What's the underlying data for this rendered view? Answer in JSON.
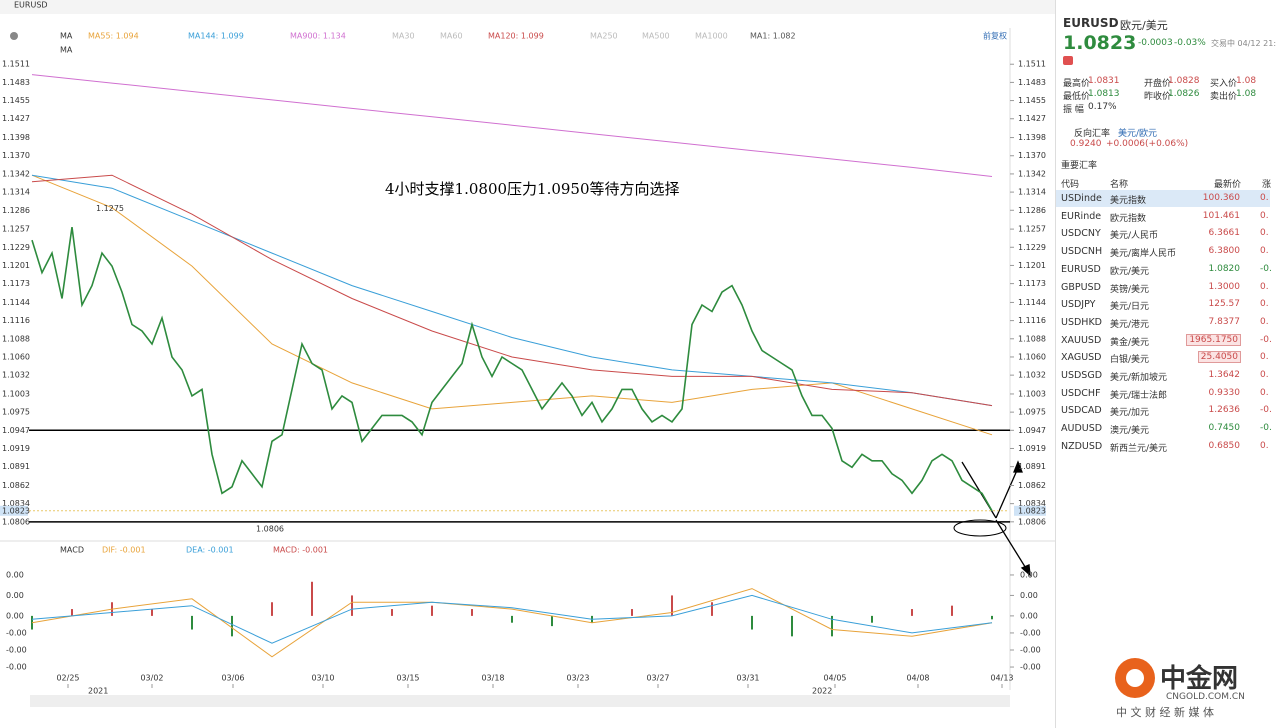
{
  "toolbar": {
    "symbol": "EURUSD",
    "adjust": "前复权",
    "indicator": "MA"
  },
  "chart_data": {
    "type": "line",
    "title": "4小时支撑1.0800压力1.0950等待方向选择",
    "xlim": [
      -0.3,
      97.5
    ],
    "ylim": [
      1.0778,
      1.1536
    ],
    "xticks": [
      {
        "value": 3.6,
        "label": "02/25"
      },
      {
        "value": 12,
        "label": "03/02"
      },
      {
        "value": 20.1,
        "label": "03/06"
      },
      {
        "value": 29.1,
        "label": "03/10"
      },
      {
        "value": 37.6,
        "label": "03/15"
      },
      {
        "value": 46.1,
        "label": "03/18"
      },
      {
        "value": 54.6,
        "label": "03/23"
      },
      {
        "value": 62.6,
        "label": "03/27"
      },
      {
        "value": 71.6,
        "label": "03/31"
      },
      {
        "value": 80.3,
        "label": "04/05"
      },
      {
        "value": 88.6,
        "label": "04/08"
      },
      {
        "value": 97,
        "label": "04/13"
      }
    ],
    "years": [
      {
        "value": 5.6,
        "label": "2021"
      },
      {
        "value": 78,
        "label": "2022"
      }
    ],
    "yticks": [
      1.1511,
      1.1483,
      1.1455,
      1.1427,
      1.1398,
      {
        "value": 1.137,
        "label": "1.1370"
      },
      1.1342,
      1.1314,
      1.1286,
      1.1257,
      1.1229,
      1.1201,
      1.1173,
      1.1144,
      1.1116,
      1.1088,
      {
        "value": 1.106,
        "label": "1.1060"
      },
      1.1032,
      1.1003,
      1.0975,
      1.0947,
      1.0919,
      1.0891,
      1.0862,
      1.0834,
      1.0806
    ],
    "price": {
      "color": "#2e8b3e",
      "x": [
        0,
        1,
        2,
        3,
        4,
        5,
        6,
        7,
        8,
        9,
        10,
        11,
        12,
        13,
        14,
        15,
        16,
        17,
        18,
        19,
        20,
        21,
        22,
        23,
        24,
        25,
        26,
        27,
        28,
        29,
        30,
        31,
        32,
        33,
        34,
        35,
        36,
        37,
        38,
        39,
        40,
        41,
        42,
        43,
        44,
        45,
        46,
        47,
        48,
        49,
        50,
        51,
        52,
        53,
        54,
        55,
        56,
        57,
        58,
        59,
        60,
        61,
        62,
        63,
        64,
        65,
        66,
        67,
        68,
        69,
        70,
        71,
        72,
        73,
        74,
        75,
        76,
        77,
        78,
        79,
        80,
        81,
        82,
        83,
        84,
        85,
        86,
        87,
        88,
        89,
        90,
        91,
        92,
        93,
        94,
        95,
        96
      ],
      "values": [
        1.124,
        1.119,
        1.122,
        1.115,
        1.126,
        1.114,
        1.117,
        1.122,
        1.12,
        1.116,
        1.111,
        1.11,
        1.108,
        1.112,
        1.106,
        1.104,
        1.1,
        1.101,
        1.091,
        1.085,
        1.086,
        1.09,
        1.088,
        1.086,
        1.093,
        1.094,
        1.101,
        1.108,
        1.105,
        1.104,
        1.098,
        1.1,
        1.099,
        1.093,
        1.095,
        1.097,
        1.097,
        1.097,
        1.096,
        1.094,
        1.099,
        1.101,
        1.103,
        1.105,
        1.111,
        1.106,
        1.103,
        1.106,
        1.105,
        1.104,
        1.101,
        1.098,
        1.1,
        1.102,
        1.1,
        1.097,
        1.099,
        1.096,
        1.098,
        1.101,
        1.101,
        1.098,
        1.096,
        1.097,
        1.096,
        1.098,
        1.111,
        1.114,
        1.113,
        1.116,
        1.117,
        1.114,
        1.11,
        1.107,
        1.106,
        1.105,
        1.104,
        1.1,
        1.097,
        1.097,
        1.095,
        1.09,
        1.089,
        1.091,
        1.09,
        1.09,
        1.088,
        1.087,
        1.085,
        1.087,
        1.09,
        1.091,
        1.09,
        1.087,
        1.086,
        1.085,
        1.0823
      ]
    },
    "series": [
      {
        "name": "MA55: 1.094",
        "color": "#e8a33a",
        "x": [
          0,
          8,
          16,
          24,
          32,
          40,
          48,
          56,
          64,
          72,
          80,
          88,
          96
        ],
        "values": [
          1.134,
          1.129,
          1.12,
          1.108,
          1.102,
          1.098,
          1.099,
          1.1,
          1.099,
          1.101,
          1.102,
          1.098,
          1.094
        ]
      },
      {
        "name": "MA144: 1.099",
        "color": "#3a9fd8",
        "x": [
          0,
          8,
          16,
          24,
          32,
          40,
          48,
          56,
          64,
          72,
          80,
          88,
          96
        ],
        "values": [
          1.134,
          1.132,
          1.127,
          1.122,
          1.117,
          1.113,
          1.109,
          1.106,
          1.104,
          1.103,
          1.102,
          1.1005,
          1.0985
        ]
      },
      {
        "name": "MA900: 1.134",
        "color": "#d070d0",
        "x": [
          0,
          8,
          16,
          24,
          32,
          40,
          48,
          56,
          64,
          72,
          80,
          88,
          96
        ],
        "values": [
          1.1495,
          1.1482,
          1.1469,
          1.1456,
          1.1443,
          1.143,
          1.1417,
          1.1404,
          1.1391,
          1.1378,
          1.1365,
          1.1352,
          1.1338
        ]
      },
      {
        "name": "MA120: 1.099",
        "color": "#c94a4a",
        "x": [
          0,
          8,
          16,
          24,
          32,
          40,
          48,
          56,
          64,
          72,
          80,
          88,
          96
        ],
        "values": [
          1.133,
          1.134,
          1.128,
          1.121,
          1.115,
          1.11,
          1.106,
          1.104,
          1.103,
          1.103,
          1.101,
          1.1005,
          1.0985
        ]
      }
    ],
    "legend_extra": [
      "MA30",
      "MA60",
      "MA250",
      "MA500",
      "MA1000",
      "MA1: 1.082"
    ],
    "hlines": [
      1.0947,
      1.0806
    ],
    "hline_color": "#000000",
    "annotations": [
      {
        "text": "1.1275",
        "x": 6.4,
        "y": 1.1275
      },
      {
        "text": "1.0806",
        "x": 22.4,
        "y": 1.0806
      }
    ],
    "last_price": {
      "value": 1.0823,
      "label": "1.0823"
    },
    "macd": {
      "title": "MACD",
      "label": "MACD: -0.001",
      "ylim": [
        -0.0094,
        0.0079
      ],
      "yticks": [
        {
          "value": 0.006,
          "label": "0.00"
        },
        {
          "value": 0.003,
          "label": "0.00"
        },
        {
          "value": 0,
          "label": "0.00"
        },
        {
          "value": -0.0025,
          "label": "-0.00"
        },
        {
          "value": -0.005,
          "label": "-0.00"
        },
        {
          "value": -0.0075,
          "label": "-0.00"
        }
      ],
      "dif": {
        "name": "DIF: -0.001",
        "color": "#e8a33a",
        "x": [
          0,
          8,
          16,
          24,
          32,
          40,
          48,
          56,
          64,
          72,
          80,
          88,
          96
        ],
        "values": [
          -0.001,
          0.001,
          0.0025,
          -0.006,
          0.002,
          0.002,
          0.001,
          -0.001,
          0.0005,
          0.004,
          -0.002,
          -0.003,
          -0.001
        ]
      },
      "dea": {
        "name": "DEA: -0.001",
        "color": "#3a9fd8",
        "x": [
          0,
          8,
          16,
          24,
          32,
          40,
          48,
          56,
          64,
          72,
          80,
          88,
          96
        ],
        "values": [
          -0.0005,
          0.0005,
          0.0015,
          -0.004,
          0.001,
          0.002,
          0.0012,
          -0.0005,
          0,
          0.003,
          -0.0005,
          -0.0025,
          -0.001
        ]
      },
      "hist": {
        "up_color": "#c94a4a",
        "down_color": "#2e8b3e",
        "x": [
          0,
          4,
          8,
          12,
          16,
          20,
          24,
          28,
          32,
          36,
          40,
          44,
          48,
          52,
          56,
          60,
          64,
          68,
          72,
          76,
          80,
          84,
          88,
          92,
          96
        ],
        "values": [
          -0.002,
          0.001,
          0.002,
          0.001,
          -0.002,
          -0.003,
          0.002,
          0.005,
          0.003,
          0.001,
          0.0015,
          0.001,
          -0.001,
          -0.0015,
          -0.001,
          0.001,
          0.003,
          0.002,
          -0.002,
          -0.003,
          -0.003,
          -0.001,
          0.001,
          0.0015,
          -0.0005
        ]
      }
    }
  },
  "panel": {
    "symbol": "EURUSD",
    "name": "欧元/美元",
    "price": "1.0823",
    "change": "-0.0003",
    "percent": "-0.03%",
    "status": "交易中 04/12 21:",
    "stats": [
      [
        "最高价",
        "1.0831",
        "开盘价",
        "1.0828",
        "买入价",
        "1.08"
      ],
      [
        "最低价",
        "1.0813",
        "昨收价",
        "1.0826",
        "卖出价",
        "1.08"
      ]
    ],
    "amplitude_label": "振 幅",
    "amplitude": "0.17%",
    "reverse": {
      "label": "反向汇率",
      "pair": "美元/欧元",
      "price": "0.9240",
      "change": "+0.0006(+0.06%)"
    },
    "table_title": "重要汇率",
    "columns": [
      "代码",
      "名称",
      "最新价",
      "涨"
    ],
    "rows": [
      [
        "USDinde",
        "美元指数",
        "100.360",
        "0.",
        "#c94a4a"
      ],
      [
        "EURinde",
        "欧元指数",
        "101.461",
        "0.",
        "#c94a4a"
      ],
      [
        "USDCNY",
        "美元/人民币",
        "6.3661",
        "0.",
        "#c94a4a"
      ],
      [
        "USDCNH",
        "美元/离岸人民币",
        "6.3800",
        "0.",
        "#c94a4a"
      ],
      [
        "EURUSD",
        "欧元/美元",
        "1.0820",
        "-0.",
        "#2e8b3e"
      ],
      [
        "GBPUSD",
        "英镑/美元",
        "1.3000",
        "0.",
        "#c94a4a"
      ],
      [
        "USDJPY",
        "美元/日元",
        "125.57",
        "0.",
        "#c94a4a"
      ],
      [
        "USDHKD",
        "美元/港元",
        "7.8377",
        "0.",
        "#c94a4a"
      ],
      [
        "XAUUSD",
        "黄金/美元",
        "1965.1750",
        "-0.",
        "#c94a4a"
      ],
      [
        "XAGUSD",
        "白银/美元",
        "25.4050",
        "0.",
        "#c94a4a"
      ],
      [
        "USDSGD",
        "美元/新加坡元",
        "1.3642",
        "0.",
        "#c94a4a"
      ],
      [
        "USDCHF",
        "美元/瑞士法郎",
        "0.9330",
        "0.",
        "#c94a4a"
      ],
      [
        "USDCAD",
        "美元/加元",
        "1.2636",
        "-0.",
        "#c94a4a"
      ],
      [
        "AUDUSD",
        "澳元/美元",
        "0.7450",
        "-0.",
        "#2e8b3e"
      ],
      [
        "NZDUSD",
        "新西兰元/美元",
        "0.6850",
        "0.",
        "#c94a4a"
      ]
    ]
  },
  "watermark": {
    "brand": "中金网",
    "site": "CNGOLD.COM.CN",
    "slogan": "中 文 财 经 新 媒 体"
  }
}
